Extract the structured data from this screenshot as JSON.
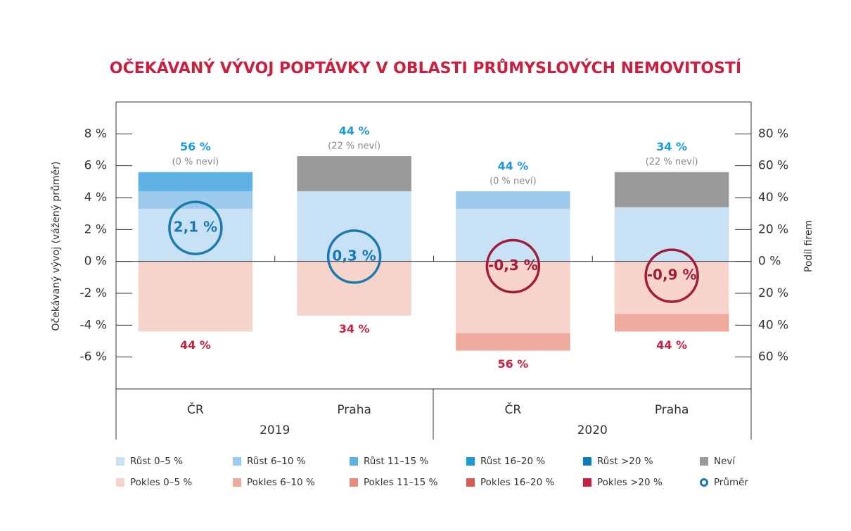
{
  "chart_data": {
    "type": "bar",
    "title": "OČEKÁVANÝ VÝVOJ POPTÁVKY V OBLASTI PRŮMYSLOVÝCH NEMOVITOSTÍ",
    "ylabel": "Očekávaný vývoj (vážený průměr)",
    "y2label": "Podíl firem",
    "categories": [
      "ČR",
      "Praha",
      "ČR",
      "Praha"
    ],
    "groups": [
      {
        "label": "2019",
        "span": 2
      },
      {
        "label": "2020",
        "span": 2
      }
    ],
    "ylim": [
      -8,
      10
    ],
    "yticks": [
      {
        "value": -6,
        "label": "-6 %"
      },
      {
        "value": -4,
        "label": "-4 %"
      },
      {
        "value": -2,
        "label": "-2 %"
      },
      {
        "value": 0,
        "label": "0 %"
      },
      {
        "value": 2,
        "label": "2 %"
      },
      {
        "value": 4,
        "label": "4 %"
      },
      {
        "value": 6,
        "label": "6 %"
      },
      {
        "value": 8,
        "label": "8 %"
      }
    ],
    "y2lim": [
      -80,
      100
    ],
    "y2ticks": [
      {
        "value": -60,
        "label": "60 %"
      },
      {
        "value": -40,
        "label": "40 %"
      },
      {
        "value": -20,
        "label": "20 %"
      },
      {
        "value": 0,
        "label": "0 %"
      },
      {
        "value": 20,
        "label": "20 %"
      },
      {
        "value": 40,
        "label": "40 %"
      },
      {
        "value": 60,
        "label": "60 %"
      },
      {
        "value": 80,
        "label": "80 %"
      }
    ],
    "series": [
      {
        "name": "Růst 0–5 %",
        "color": "#c9e1f5",
        "axis": "y2",
        "values": [
          33,
          44,
          33,
          34
        ]
      },
      {
        "name": "Růst 6–10 %",
        "color": "#9ccbee",
        "axis": "y2",
        "values": [
          11,
          null,
          11,
          null
        ]
      },
      {
        "name": "Růst 11–15 %",
        "color": "#5fb3e4",
        "axis": "y2",
        "values": [
          12,
          null,
          null,
          null
        ]
      },
      {
        "name": "Růst 16–20 %",
        "color": "#1a9bd7",
        "axis": "y2",
        "values": [
          null,
          null,
          null,
          null
        ]
      },
      {
        "name": "Růst >20 %",
        "color": "#0a7fc0",
        "axis": "y2",
        "values": [
          null,
          null,
          null,
          null
        ]
      },
      {
        "name": "Neví",
        "color": "#9a9a9c",
        "axis": "y2",
        "values": [
          null,
          22,
          null,
          22
        ]
      },
      {
        "name": "Pokles 0–5 %",
        "color": "#f6d3cb",
        "axis": "y2",
        "values": [
          -44,
          -34,
          -45,
          -33
        ]
      },
      {
        "name": "Pokles 6–10 %",
        "color": "#eeaa9d",
        "axis": "y2",
        "values": [
          null,
          null,
          -11,
          -11
        ]
      },
      {
        "name": "Pokles 11–15 %",
        "color": "#e68a7c",
        "axis": "y2",
        "values": [
          null,
          null,
          null,
          null
        ]
      },
      {
        "name": "Pokles 16–20 %",
        "color": "#d95a55",
        "axis": "y2",
        "values": [
          null,
          null,
          null,
          null
        ]
      },
      {
        "name": "Pokles >20 %",
        "color": "#c8203e",
        "axis": "y2",
        "values": [
          null,
          null,
          null,
          null
        ]
      },
      {
        "name": "Průměr",
        "color": "#1a7ab0",
        "negative_color": "#a11c3a",
        "axis": "y",
        "style": "circle",
        "values": [
          2.1,
          0.3,
          -0.3,
          -0.9
        ],
        "value_labels": [
          "2,1 %",
          "0,3 %",
          "-0,3 %",
          "-0,9 %"
        ]
      }
    ],
    "annotations": {
      "growth": [
        "56 %",
        "44 %",
        "44 %",
        "34 %"
      ],
      "unknown": [
        "(0 % neví)",
        "(22 % neví)",
        "(0 % neví)",
        "(22 % neví)"
      ],
      "decline": [
        "44 %",
        "34 %",
        "56 %",
        "44 %"
      ]
    }
  }
}
